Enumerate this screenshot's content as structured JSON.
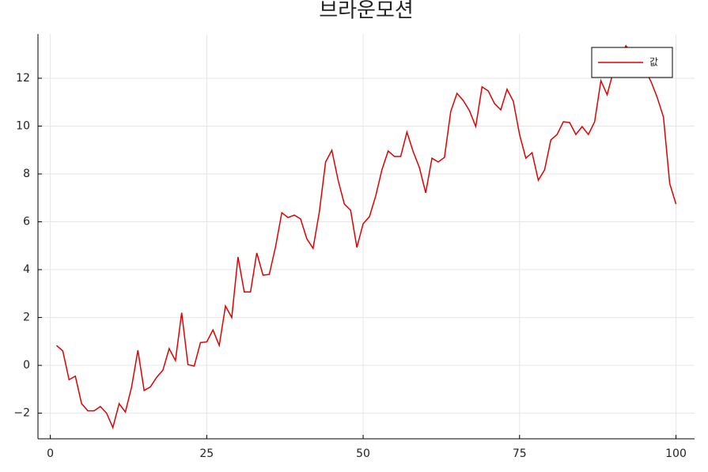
{
  "chart_data": {
    "type": "line",
    "title": "브라운모션",
    "x": [
      1,
      2,
      3,
      4,
      5,
      6,
      7,
      8,
      9,
      10,
      11,
      12,
      13,
      14,
      15,
      16,
      17,
      18,
      19,
      20,
      21,
      22,
      23,
      24,
      25,
      26,
      27,
      28,
      29,
      30,
      31,
      32,
      33,
      34,
      35,
      36,
      37,
      38,
      39,
      40,
      41,
      42,
      43,
      44,
      45,
      46,
      47,
      48,
      49,
      50,
      51,
      52,
      53,
      54,
      55,
      56,
      57,
      58,
      59,
      60,
      61,
      62,
      63,
      64,
      65,
      66,
      67,
      68,
      69,
      70,
      71,
      72,
      73,
      74,
      75,
      76,
      77,
      78,
      79,
      80,
      81,
      82,
      83,
      84,
      85,
      86,
      87,
      88,
      89,
      90,
      91,
      92,
      93,
      94,
      95,
      96,
      97,
      98,
      99,
      100
    ],
    "series": [
      {
        "name": "값",
        "color": "#e00000",
        "values": [
          0.83,
          0.6,
          -0.6,
          -0.45,
          -1.6,
          -1.9,
          -1.9,
          -1.72,
          -2.0,
          -2.6,
          -1.6,
          -1.95,
          -0.9,
          0.63,
          -1.05,
          -0.9,
          -0.5,
          -0.2,
          0.7,
          0.2,
          2.2,
          0.03,
          -0.03,
          0.95,
          0.98,
          1.48,
          0.83,
          2.48,
          2.0,
          4.53,
          3.07,
          3.07,
          4.7,
          3.77,
          3.8,
          4.95,
          6.38,
          6.18,
          6.28,
          6.12,
          5.29,
          4.89,
          6.41,
          8.5,
          8.99,
          7.74,
          6.74,
          6.48,
          4.93,
          5.92,
          6.21,
          7.07,
          8.17,
          8.96,
          8.73,
          8.73,
          9.75,
          8.93,
          8.26,
          7.21,
          8.66,
          8.5,
          8.69,
          10.61,
          11.37,
          11.07,
          10.64,
          9.98,
          11.64,
          11.47,
          10.94,
          10.68,
          11.54,
          11.04,
          9.65,
          8.66,
          8.89,
          7.74,
          8.17,
          9.42,
          9.65,
          10.18,
          10.15,
          9.65,
          9.98,
          9.65,
          10.18,
          11.9,
          11.31,
          12.3,
          12.79,
          13.36,
          13.0,
          12.6,
          12.36,
          11.87,
          11.2,
          10.38,
          7.6,
          6.74
        ]
      }
    ],
    "xlim": [
      -1.97,
      102.97
    ],
    "ylim": [
      -3.07,
      13.85
    ],
    "xticks": [
      0,
      25,
      50,
      75,
      100
    ],
    "yticks": [
      {
        "value": -2,
        "label": "−2"
      },
      0,
      2,
      4,
      6,
      8,
      10,
      12
    ],
    "grid": true,
    "legend": "top-right"
  }
}
